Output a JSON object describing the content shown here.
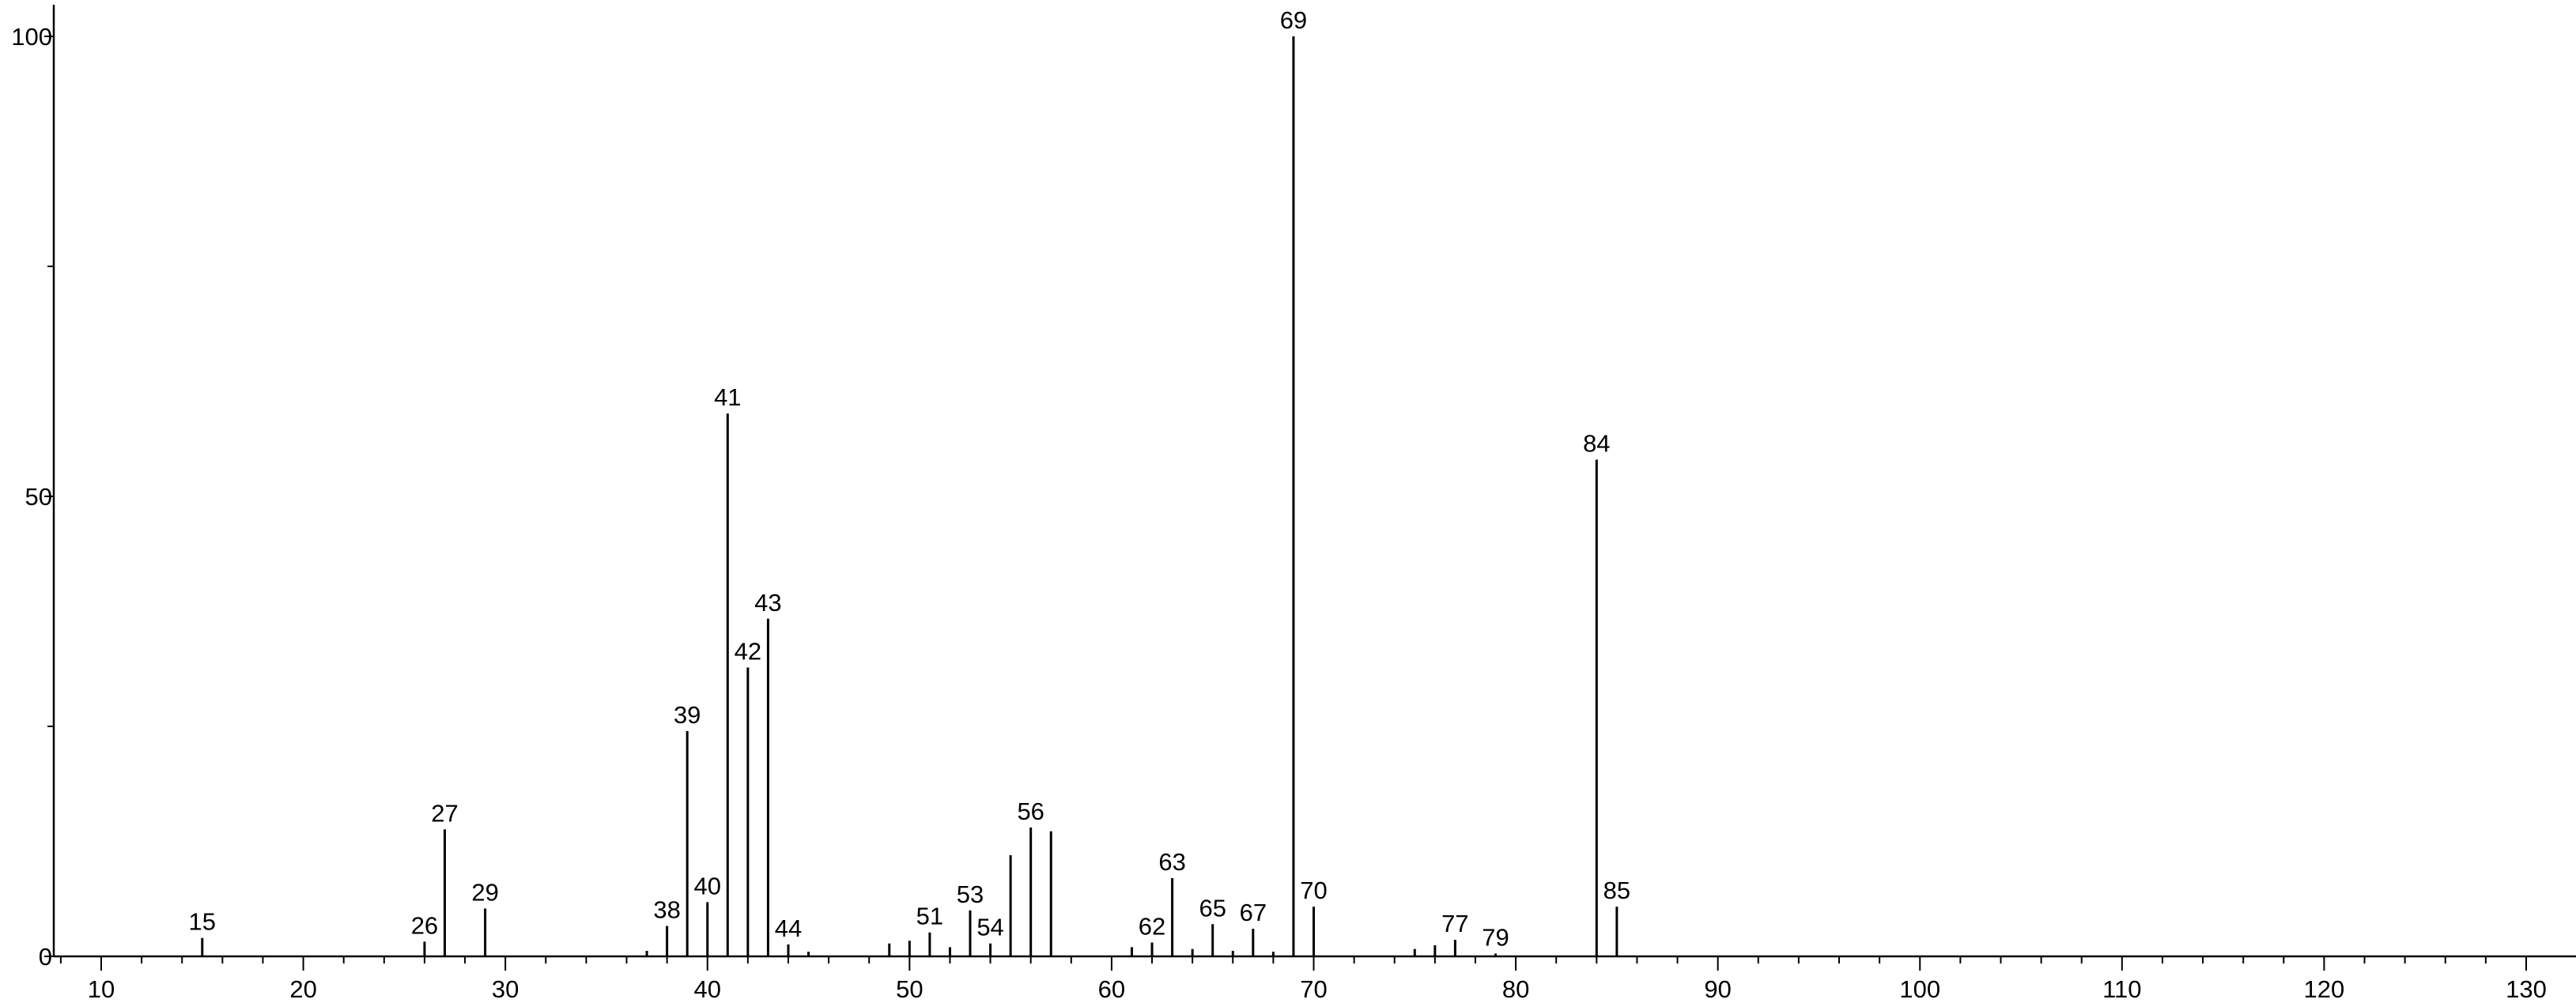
{
  "chart_data": {
    "type": "bar",
    "title": "",
    "xlabel": "",
    "ylabel": "",
    "xlim": [
      7.8,
      131.2
    ],
    "ylim": [
      0,
      100
    ],
    "x_ticks": [
      10,
      20,
      30,
      40,
      50,
      60,
      70,
      80,
      90,
      100,
      110,
      120,
      130
    ],
    "x_tick_labels": [
      "10",
      "20",
      "30",
      "40",
      "50",
      "60",
      "70",
      "80",
      "90",
      "100",
      "110",
      "120",
      "130"
    ],
    "x_minor_step": 2,
    "y_ticks": [
      0,
      50,
      100
    ],
    "y_tick_labels": [
      "0",
      "50",
      "100"
    ],
    "y_minor_ticks": [
      25,
      75
    ],
    "grid": false,
    "legend": "none",
    "colors": {
      "bar": "#000000",
      "axis": "#000000",
      "text": "#000000"
    },
    "peaks": [
      {
        "x": 15,
        "y": 2.0,
        "label": "15"
      },
      {
        "x": 26,
        "y": 1.6,
        "label": "26"
      },
      {
        "x": 27,
        "y": 13.8,
        "label": "27"
      },
      {
        "x": 29,
        "y": 5.2,
        "label": "29"
      },
      {
        "x": 37,
        "y": 0.6,
        "label": ""
      },
      {
        "x": 38,
        "y": 3.3,
        "label": "38"
      },
      {
        "x": 39,
        "y": 24.5,
        "label": "39"
      },
      {
        "x": 40,
        "y": 5.9,
        "label": "40"
      },
      {
        "x": 41,
        "y": 59.0,
        "label": "41"
      },
      {
        "x": 42,
        "y": 31.4,
        "label": "42"
      },
      {
        "x": 43,
        "y": 36.7,
        "label": "43"
      },
      {
        "x": 44,
        "y": 1.3,
        "label": "44"
      },
      {
        "x": 45,
        "y": 0.5,
        "label": ""
      },
      {
        "x": 49,
        "y": 1.4,
        "label": ""
      },
      {
        "x": 50,
        "y": 1.7,
        "label": ""
      },
      {
        "x": 51,
        "y": 2.6,
        "label": "51"
      },
      {
        "x": 52,
        "y": 1.0,
        "label": ""
      },
      {
        "x": 53,
        "y": 5.0,
        "label": "53"
      },
      {
        "x": 54,
        "y": 1.4,
        "label": "54"
      },
      {
        "x": 55,
        "y": 11.0,
        "label": ""
      },
      {
        "x": 56,
        "y": 14.0,
        "label": "56"
      },
      {
        "x": 57,
        "y": 13.6,
        "label": ""
      },
      {
        "x": 61,
        "y": 1.0,
        "label": ""
      },
      {
        "x": 62,
        "y": 1.5,
        "label": "62"
      },
      {
        "x": 63,
        "y": 8.5,
        "label": "63"
      },
      {
        "x": 64,
        "y": 0.8,
        "label": ""
      },
      {
        "x": 65,
        "y": 3.5,
        "label": "65"
      },
      {
        "x": 66,
        "y": 0.6,
        "label": ""
      },
      {
        "x": 67,
        "y": 3.0,
        "label": "67"
      },
      {
        "x": 68,
        "y": 0.5,
        "label": ""
      },
      {
        "x": 69,
        "y": 100.0,
        "label": "69"
      },
      {
        "x": 70,
        "y": 5.4,
        "label": "70"
      },
      {
        "x": 75,
        "y": 0.8,
        "label": ""
      },
      {
        "x": 76,
        "y": 1.2,
        "label": ""
      },
      {
        "x": 77,
        "y": 1.8,
        "label": "77"
      },
      {
        "x": 79,
        "y": 0.3,
        "label": "79"
      },
      {
        "x": 84,
        "y": 54.0,
        "label": "84"
      },
      {
        "x": 85,
        "y": 5.4,
        "label": "85"
      }
    ]
  }
}
